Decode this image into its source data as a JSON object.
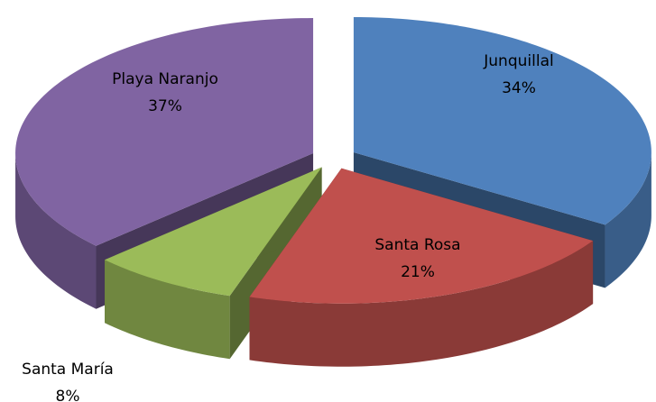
{
  "chart_data": {
    "type": "pie3d",
    "categories": [
      "Junquillal",
      "Santa Rosa",
      "Santa María",
      "Playa Naranjo"
    ],
    "values": [
      34,
      21,
      8,
      37
    ],
    "value_labels": [
      "34%",
      "21%",
      "8%",
      "37%"
    ],
    "colors": [
      "#4f81bd",
      "#c0504d",
      "#9bbb59",
      "#8064a2"
    ]
  }
}
